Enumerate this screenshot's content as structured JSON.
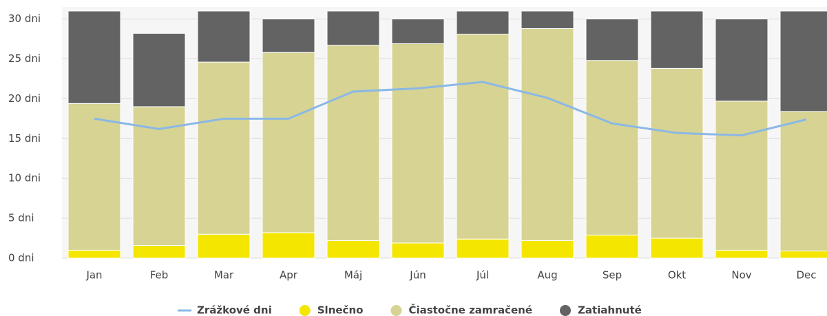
{
  "chart_data": {
    "type": "bar",
    "stacked": true,
    "categories": [
      "Jan",
      "Feb",
      "Mar",
      "Apr",
      "Máj",
      "Jún",
      "Júl",
      "Aug",
      "Sep",
      "Okt",
      "Nov",
      "Dec"
    ],
    "series": [
      {
        "name": "Zrážkové dni",
        "type": "line",
        "color": "#8ab8e6",
        "values": [
          17.5,
          16.2,
          17.5,
          17.5,
          20.9,
          21.3,
          22.1,
          20.1,
          16.9,
          15.7,
          15.4,
          17.4
        ]
      },
      {
        "name": "Slnečno",
        "color": "#f5e600",
        "values": [
          1.0,
          1.6,
          3.0,
          3.2,
          2.2,
          1.9,
          2.4,
          2.2,
          2.9,
          2.5,
          1.0,
          0.9
        ]
      },
      {
        "name": "Čiastočne zamračené",
        "color": "#d7d393",
        "values": [
          18.4,
          17.4,
          21.6,
          22.6,
          24.5,
          25.0,
          25.7,
          26.6,
          21.9,
          21.3,
          18.7,
          17.5
        ]
      },
      {
        "name": "Zatiahnuté",
        "color": "#636363",
        "values": [
          11.6,
          9.2,
          6.4,
          4.2,
          4.3,
          3.1,
          2.9,
          2.2,
          5.2,
          7.2,
          10.3,
          12.6
        ]
      }
    ],
    "ylim": [
      0,
      31
    ],
    "yticks": [
      {
        "value": 0,
        "label": "0 dni"
      },
      {
        "value": 5,
        "label": "5 dni"
      },
      {
        "value": 10,
        "label": "10 dni"
      },
      {
        "value": 15,
        "label": "15 dni"
      },
      {
        "value": 20,
        "label": "20 dni"
      },
      {
        "value": 25,
        "label": "25 dni"
      },
      {
        "value": 30,
        "label": "30 dni"
      }
    ],
    "grid": true,
    "legend": "bottom"
  }
}
